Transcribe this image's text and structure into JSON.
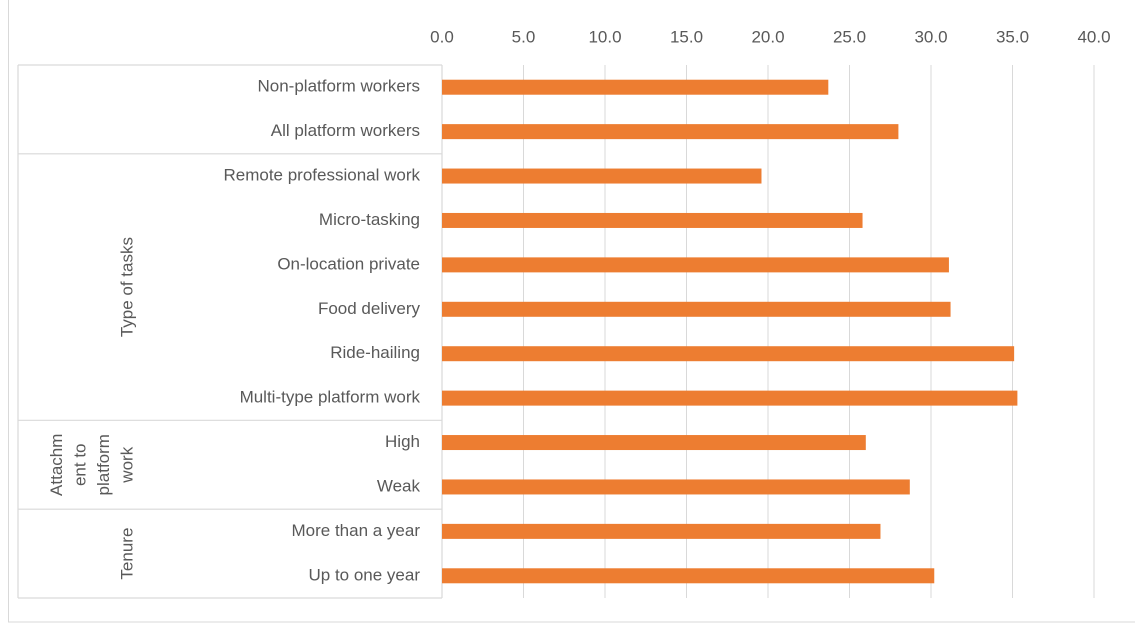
{
  "chart_data": {
    "type": "bar",
    "orientation": "horizontal",
    "color": "#ed7d31",
    "xlim": [
      0,
      40
    ],
    "xticks": [
      {
        "value": 0,
        "label": "0.0"
      },
      {
        "value": 5,
        "label": "5.0"
      },
      {
        "value": 10,
        "label": "10.0"
      },
      {
        "value": 15,
        "label": "15.0"
      },
      {
        "value": 20,
        "label": "20.0"
      },
      {
        "value": 25,
        "label": "25.0"
      },
      {
        "value": 30,
        "label": "30.0"
      },
      {
        "value": 35,
        "label": "35.0"
      },
      {
        "value": 40,
        "label": "40.0"
      }
    ],
    "grid": true,
    "groups": [
      {
        "categories": [
          "Non-platform workers",
          "All platform workers"
        ],
        "values": [
          23.7,
          28.0
        ]
      },
      {
        "label": [
          "Type of tasks"
        ],
        "categories": [
          "Remote professional work",
          "Micro-tasking",
          "On-location private",
          "Food delivery",
          "Ride-hailing",
          "Multi-type platform work"
        ],
        "values": [
          19.6,
          25.8,
          31.1,
          31.2,
          35.1,
          35.3
        ]
      },
      {
        "label": [
          "Attachm",
          "ent to",
          "platform",
          "work"
        ],
        "categories": [
          "High",
          "Weak"
        ],
        "values": [
          26.0,
          28.7
        ]
      },
      {
        "label": [
          "Tenure"
        ],
        "categories": [
          "More than a year",
          "Up to one year"
        ],
        "values": [
          26.9,
          30.2
        ]
      }
    ]
  }
}
